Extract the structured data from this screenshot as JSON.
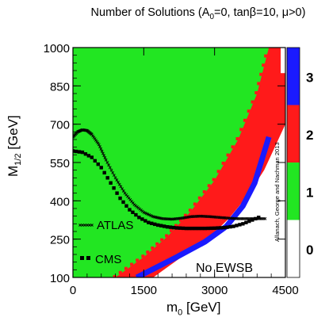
{
  "chart_data": {
    "type": "heatmap",
    "title": {
      "prefix": "Number of Solutions (A",
      "sub": "0",
      "suffix": "=0, tanβ=10, μ>0)"
    },
    "xlabel": {
      "main": "m",
      "sub": "0",
      "unit": " [GeV]"
    },
    "ylabel": {
      "main": "M",
      "sub": "1/2",
      "unit": " [GeV]"
    },
    "xlim": [
      0,
      4500
    ],
    "ylim": [
      100,
      1000
    ],
    "xticks": [
      "0",
      "1500",
      "3000",
      "4500"
    ],
    "yticks": [
      "100",
      "250",
      "400",
      "550",
      "700",
      "850",
      "1000"
    ],
    "colorbar": {
      "levels": [
        {
          "value": 3,
          "label": "3",
          "color": "#1a1aff"
        },
        {
          "value": 2,
          "label": "2",
          "color": "#ff1a1a"
        },
        {
          "value": 1,
          "label": "1",
          "color": "#22e622"
        },
        {
          "value": 0,
          "label": "0",
          "color": "#ffffff"
        }
      ]
    },
    "region_boundaries": {
      "no_ewsb_edge": [
        [
          900,
          100
        ],
        [
          1500,
          180
        ],
        [
          2000,
          260
        ],
        [
          2500,
          360
        ],
        [
          3000,
          480
        ],
        [
          3500,
          640
        ],
        [
          3900,
          820
        ],
        [
          4150,
          1000
        ]
      ],
      "two_solution_edge": [
        [
          4000,
          1000
        ],
        [
          4500,
          1000
        ]
      ],
      "three_solution_band": [
        [
          1350,
          100
        ],
        [
          2200,
          180
        ],
        [
          2800,
          240
        ],
        [
          3250,
          300
        ],
        [
          3600,
          380
        ],
        [
          3850,
          470
        ],
        [
          4000,
          560
        ],
        [
          4150,
          650
        ]
      ]
    },
    "annotations": {
      "no_ewsb": "No EWSB",
      "credit": "Allanach, George and Nachman 2013"
    },
    "series": [
      {
        "name": "ATLAS",
        "style": "small-cross",
        "x": [
          0,
          100,
          200,
          300,
          400,
          550,
          700,
          900,
          1100,
          1300,
          1500,
          1700,
          1900,
          2100,
          2300,
          2500,
          2700,
          2900,
          3100,
          3300,
          3500,
          3700,
          3900,
          4100
        ],
        "y": [
          650,
          670,
          678,
          675,
          660,
          620,
          560,
          490,
          430,
          385,
          355,
          338,
          330,
          328,
          332,
          338,
          340,
          338,
          335,
          332,
          330,
          330,
          330,
          330
        ]
      },
      {
        "name": "CMS",
        "style": "thick-dash",
        "x": [
          0,
          200,
          400,
          600,
          800,
          1000,
          1200,
          1400,
          1600,
          1800,
          2000,
          2200,
          2400,
          2600,
          2800,
          3000,
          3200,
          3400,
          3600,
          3800,
          4000
        ],
        "y": [
          595,
          590,
          570,
          530,
          470,
          410,
          365,
          335,
          315,
          305,
          298,
          294,
          292,
          292,
          292,
          293,
          295,
          300,
          310,
          325,
          340
        ]
      }
    ]
  }
}
